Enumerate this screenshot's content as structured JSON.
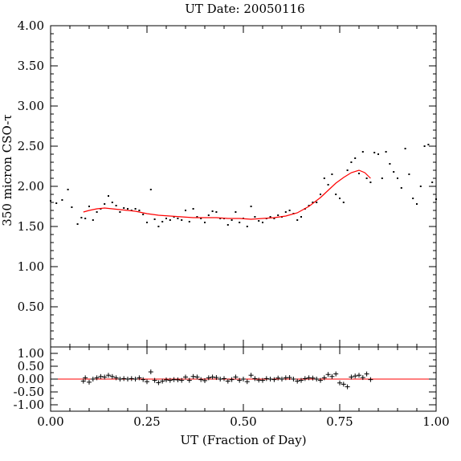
{
  "chart_data": [
    {
      "type": "scatter",
      "title": "UT Date: 20050116",
      "xlabel": "",
      "ylabel": "350 micron CSO-τ",
      "xlim": [
        0.0,
        1.0
      ],
      "ylim": [
        0.0,
        4.0
      ],
      "y_ticks": [
        "0.50",
        "1.00",
        "1.50",
        "2.00",
        "2.50",
        "3.00",
        "3.50",
        "4.00"
      ],
      "y_tick_values": [
        0.5,
        1.0,
        1.5,
        2.0,
        2.5,
        3.0,
        3.5,
        4.0
      ],
      "colors": {
        "points": "#000000",
        "fit": "#ff0000"
      },
      "series": [
        {
          "type": "scatter",
          "x": [
            0.0,
            0.015,
            0.03,
            0.045,
            0.055,
            0.07,
            0.08,
            0.09,
            0.1,
            0.11,
            0.12,
            0.13,
            0.14,
            0.15,
            0.16,
            0.17,
            0.18,
            0.19,
            0.2,
            0.21,
            0.22,
            0.23,
            0.24,
            0.25,
            0.26,
            0.27,
            0.28,
            0.29,
            0.3,
            0.31,
            0.32,
            0.33,
            0.34,
            0.35,
            0.36,
            0.37,
            0.38,
            0.39,
            0.4,
            0.41,
            0.42,
            0.43,
            0.44,
            0.45,
            0.46,
            0.47,
            0.48,
            0.49,
            0.5,
            0.51,
            0.52,
            0.53,
            0.54,
            0.55,
            0.56,
            0.57,
            0.58,
            0.59,
            0.6,
            0.61,
            0.62,
            0.63,
            0.64,
            0.65,
            0.66,
            0.67,
            0.68,
            0.69,
            0.7,
            0.71,
            0.72,
            0.73,
            0.74,
            0.75,
            0.76,
            0.77,
            0.78,
            0.79,
            0.8,
            0.81,
            0.82,
            0.83,
            0.84,
            0.85,
            0.86,
            0.87,
            0.88,
            0.89,
            0.9,
            0.91,
            0.92,
            0.93,
            0.94,
            0.95,
            0.96,
            0.97,
            0.98,
            0.99,
            1.0
          ],
          "y": [
            1.82,
            1.79,
            1.83,
            1.96,
            1.74,
            1.53,
            1.61,
            1.6,
            1.75,
            1.58,
            1.68,
            1.72,
            1.78,
            1.88,
            1.8,
            1.76,
            1.68,
            1.73,
            1.72,
            1.7,
            1.72,
            1.7,
            1.65,
            1.55,
            1.96,
            1.59,
            1.5,
            1.56,
            1.6,
            1.58,
            1.62,
            1.6,
            1.58,
            1.7,
            1.56,
            1.72,
            1.62,
            1.6,
            1.55,
            1.64,
            1.69,
            1.68,
            1.6,
            1.6,
            1.52,
            1.58,
            1.68,
            1.55,
            1.6,
            1.5,
            1.75,
            1.62,
            1.57,
            1.55,
            1.6,
            1.62,
            1.6,
            1.64,
            1.62,
            1.68,
            1.7,
            1.66,
            1.58,
            1.62,
            1.72,
            1.76,
            1.8,
            1.8,
            1.9,
            2.1,
            2.02,
            2.15,
            1.9,
            1.85,
            1.8,
            2.2,
            2.3,
            2.35,
            2.16,
            2.43,
            2.1,
            2.05,
            2.42,
            2.4,
            2.1,
            2.43,
            2.28,
            2.18,
            2.1,
            1.98,
            2.47,
            2.15,
            1.85,
            1.78,
            2.0,
            2.5,
            2.52,
            2.05,
            1.84
          ]
        },
        {
          "type": "line",
          "x": [
            0.085,
            0.1,
            0.12,
            0.14,
            0.16,
            0.18,
            0.2,
            0.22,
            0.25,
            0.28,
            0.31,
            0.34,
            0.37,
            0.4,
            0.43,
            0.46,
            0.49,
            0.52,
            0.55,
            0.58,
            0.61,
            0.64,
            0.67,
            0.7,
            0.72,
            0.74,
            0.76,
            0.78,
            0.8,
            0.815,
            0.83
          ],
          "y": [
            1.68,
            1.7,
            1.72,
            1.73,
            1.72,
            1.71,
            1.7,
            1.69,
            1.66,
            1.64,
            1.63,
            1.62,
            1.61,
            1.61,
            1.61,
            1.6,
            1.6,
            1.59,
            1.6,
            1.61,
            1.63,
            1.67,
            1.75,
            1.86,
            1.95,
            2.04,
            2.11,
            2.17,
            2.2,
            2.17,
            2.1
          ]
        }
      ]
    },
    {
      "type": "scatter",
      "xlabel": "UT (Fraction of Day)",
      "ylabel": "",
      "xlim": [
        0.0,
        1.0
      ],
      "ylim": [
        -1.25,
        1.25
      ],
      "x_ticks": [
        "0.00",
        "0.25",
        "0.50",
        "0.75",
        "1.00"
      ],
      "x_tick_values": [
        0.0,
        0.25,
        0.5,
        0.75,
        1.0
      ],
      "y_ticks": [
        "-1.00",
        "-0.50",
        "0.00",
        "0.50",
        "1.00"
      ],
      "y_tick_values": [
        -1.0,
        -0.5,
        0.0,
        0.5,
        1.0
      ],
      "zero_line_color": "#ff0000",
      "series": [
        {
          "type": "scatter",
          "marker": "+",
          "x": [
            0.085,
            0.09,
            0.1,
            0.11,
            0.12,
            0.13,
            0.14,
            0.15,
            0.16,
            0.17,
            0.18,
            0.19,
            0.2,
            0.21,
            0.22,
            0.23,
            0.24,
            0.25,
            0.26,
            0.27,
            0.28,
            0.29,
            0.3,
            0.31,
            0.32,
            0.33,
            0.34,
            0.35,
            0.36,
            0.37,
            0.38,
            0.39,
            0.4,
            0.41,
            0.42,
            0.43,
            0.44,
            0.45,
            0.46,
            0.47,
            0.48,
            0.49,
            0.5,
            0.51,
            0.52,
            0.53,
            0.54,
            0.55,
            0.56,
            0.57,
            0.58,
            0.59,
            0.6,
            0.61,
            0.62,
            0.63,
            0.64,
            0.65,
            0.66,
            0.67,
            0.68,
            0.69,
            0.7,
            0.71,
            0.72,
            0.73,
            0.74,
            0.75,
            0.76,
            0.77,
            0.78,
            0.79,
            0.8,
            0.81,
            0.82,
            0.83
          ],
          "y": [
            -0.08,
            0.05,
            -0.12,
            0.0,
            0.05,
            0.1,
            0.08,
            0.15,
            0.1,
            0.05,
            0.0,
            0.02,
            0.0,
            0.02,
            0.0,
            0.05,
            -0.02,
            -0.1,
            0.28,
            -0.05,
            -0.14,
            -0.08,
            -0.03,
            -0.05,
            -0.02,
            -0.03,
            -0.05,
            0.08,
            -0.05,
            0.1,
            0.08,
            -0.02,
            -0.06,
            0.05,
            0.08,
            0.06,
            0.0,
            0.02,
            -0.08,
            -0.02,
            0.08,
            -0.05,
            0.0,
            -0.1,
            0.15,
            0.02,
            -0.04,
            -0.05,
            0.02,
            0.0,
            -0.02,
            0.04,
            0.0,
            0.05,
            0.06,
            0.0,
            -0.08,
            -0.05,
            0.02,
            0.05,
            0.04,
            0.0,
            -0.05,
            0.05,
            0.18,
            0.1,
            0.2,
            -0.15,
            -0.2,
            -0.3,
            0.08,
            0.12,
            0.15,
            0.06,
            0.2,
            -0.02
          ]
        }
      ]
    }
  ]
}
